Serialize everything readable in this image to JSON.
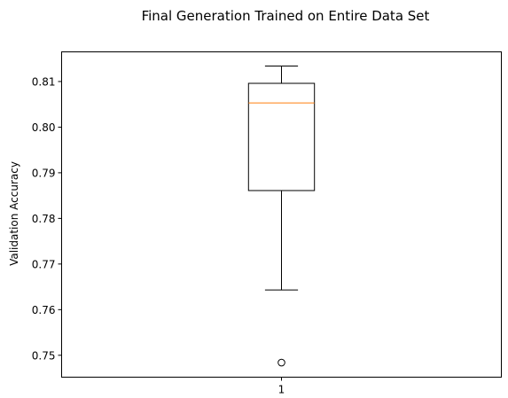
{
  "chart_data": {
    "type": "boxplot",
    "title": "Final Generation Trained on Entire Data Set",
    "xlabel": "",
    "ylabel": "Validation Accuracy",
    "categories": [
      "1"
    ],
    "ylim": [
      0.7452,
      0.8165
    ],
    "yticks": [
      0.75,
      0.76,
      0.77,
      0.78,
      0.79,
      0.8,
      0.81
    ],
    "ytick_labels": [
      "0.75",
      "0.76",
      "0.77",
      "0.78",
      "0.79",
      "0.80",
      "0.81"
    ],
    "boxes": [
      {
        "category": "1",
        "whisker_low": 0.7643,
        "q1": 0.7861,
        "median": 0.8053,
        "q3": 0.8096,
        "whisker_high": 0.8134,
        "fliers": [
          0.7484
        ]
      }
    ],
    "grid": false,
    "colors": {
      "box": "#000000",
      "median": "#ff7f0e",
      "whisker": "#000000",
      "flier": "#000000"
    }
  }
}
